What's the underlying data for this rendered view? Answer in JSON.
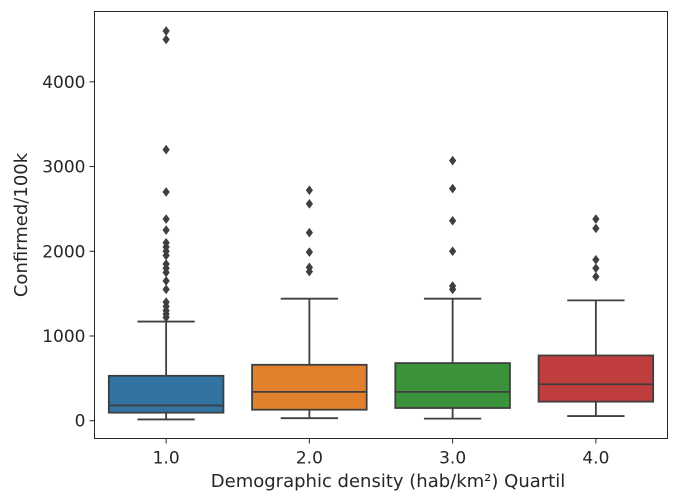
{
  "chart_data": {
    "type": "box",
    "title": "",
    "xlabel": "Demographic density (hab/km²) Quartil",
    "ylabel": "Confirmed/100k",
    "categories": [
      "1.0",
      "2.0",
      "3.0",
      "4.0"
    ],
    "ylim": [
      -210,
      4830
    ],
    "yticks": [
      0,
      1000,
      2000,
      3000,
      4000
    ],
    "ytick_labels": [
      "0",
      "1000",
      "2000",
      "3000",
      "4000"
    ],
    "grid": false,
    "legend": "none",
    "colors": [
      "#3274a1",
      "#e1812c",
      "#3a923a",
      "#c03d3e"
    ],
    "boxes": [
      {
        "category": "1.0",
        "whisker_low": 15,
        "q1": 95,
        "median": 180,
        "q3": 530,
        "whisker_high": 1170,
        "outliers": [
          1220,
          1260,
          1300,
          1350,
          1400,
          1550,
          1650,
          1750,
          1800,
          1850,
          1950,
          2000,
          2050,
          2100,
          2250,
          2380,
          2700,
          3200,
          4500,
          4600
        ]
      },
      {
        "category": "2.0",
        "whisker_low": 30,
        "q1": 130,
        "median": 340,
        "q3": 660,
        "whisker_high": 1440,
        "outliers": [
          1760,
          1810,
          1990,
          2220,
          2560,
          2720
        ]
      },
      {
        "category": "3.0",
        "whisker_low": 25,
        "q1": 150,
        "median": 340,
        "q3": 680,
        "whisker_high": 1440,
        "outliers": [
          1550,
          1590,
          2000,
          2360,
          2740,
          3070
        ]
      },
      {
        "category": "4.0",
        "whisker_low": 55,
        "q1": 225,
        "median": 430,
        "q3": 770,
        "whisker_high": 1420,
        "outliers": [
          1700,
          1800,
          1900,
          2270,
          2380
        ]
      }
    ]
  }
}
